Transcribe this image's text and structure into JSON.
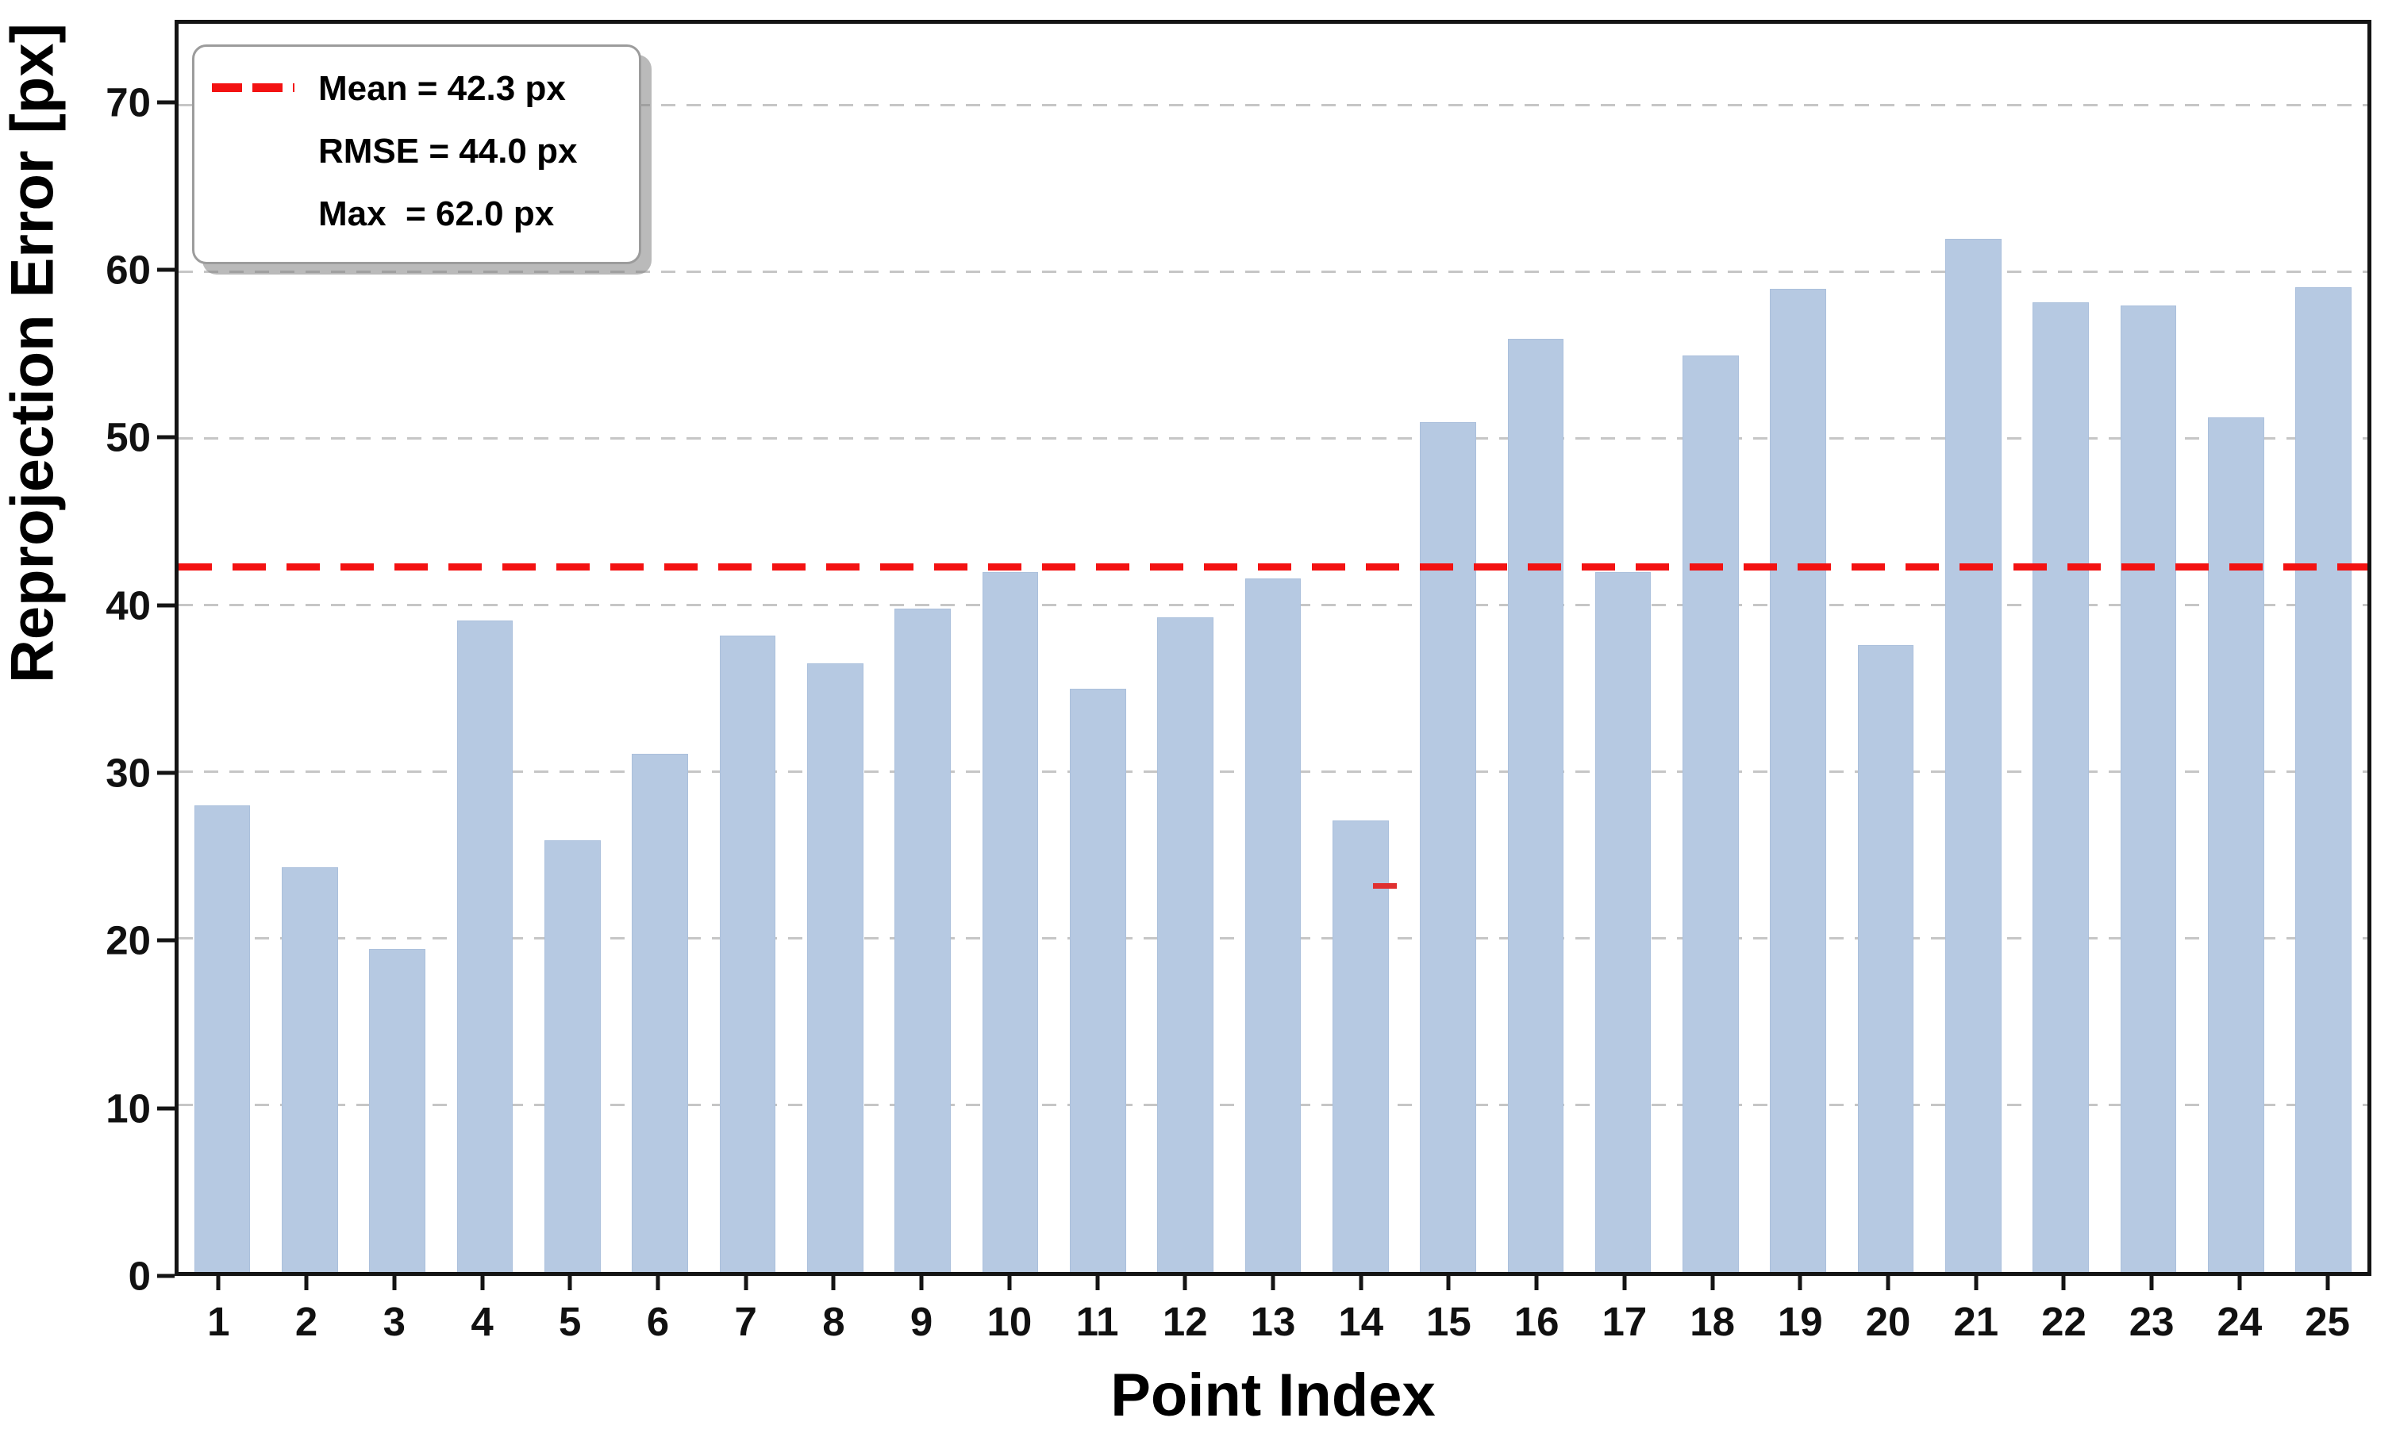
{
  "figure": {
    "background": "#ffffff"
  },
  "chart_data": {
    "type": "bar",
    "title": "",
    "xlabel": "Point Index",
    "ylabel": "Reprojection Error [px]",
    "categories": [
      "1",
      "2",
      "3",
      "4",
      "5",
      "6",
      "7",
      "8",
      "9",
      "10",
      "11",
      "12",
      "13",
      "14",
      "15",
      "16",
      "17",
      "18",
      "19",
      "20",
      "21",
      "22",
      "23",
      "24",
      "25"
    ],
    "values": [
      28.0,
      24.3,
      19.4,
      39.1,
      25.9,
      31.1,
      38.2,
      36.5,
      39.8,
      42.0,
      35.0,
      39.3,
      41.6,
      27.1,
      51.0,
      56.0,
      42.0,
      55.0,
      59.0,
      37.6,
      62.0,
      58.2,
      58.0,
      51.3,
      59.1
    ],
    "ylim": [
      0,
      74.9
    ],
    "yticks": [
      0,
      10,
      20,
      30,
      40,
      50,
      60,
      70
    ],
    "grid": {
      "axis": "y",
      "style": "dashed",
      "color": "#c6c6c6"
    },
    "bar_color": "#b6c9e2",
    "bar_edge_color": "#abc0dc",
    "mean_line": {
      "value": 42.3,
      "color": "#f31212",
      "style": "dashed"
    },
    "legend": {
      "position": "upper-left",
      "entries": [
        {
          "symbol": "red-dashed-line",
          "label": "Mean = 42.3 px"
        },
        {
          "symbol": "none",
          "label": "RMSE = 44.0 px"
        },
        {
          "symbol": "none",
          "label": "Max  = 62.0 px"
        }
      ]
    },
    "annotations": [
      {
        "type": "stray-red-dash",
        "x_frac": 0.551,
        "value": 23.0
      }
    ]
  }
}
